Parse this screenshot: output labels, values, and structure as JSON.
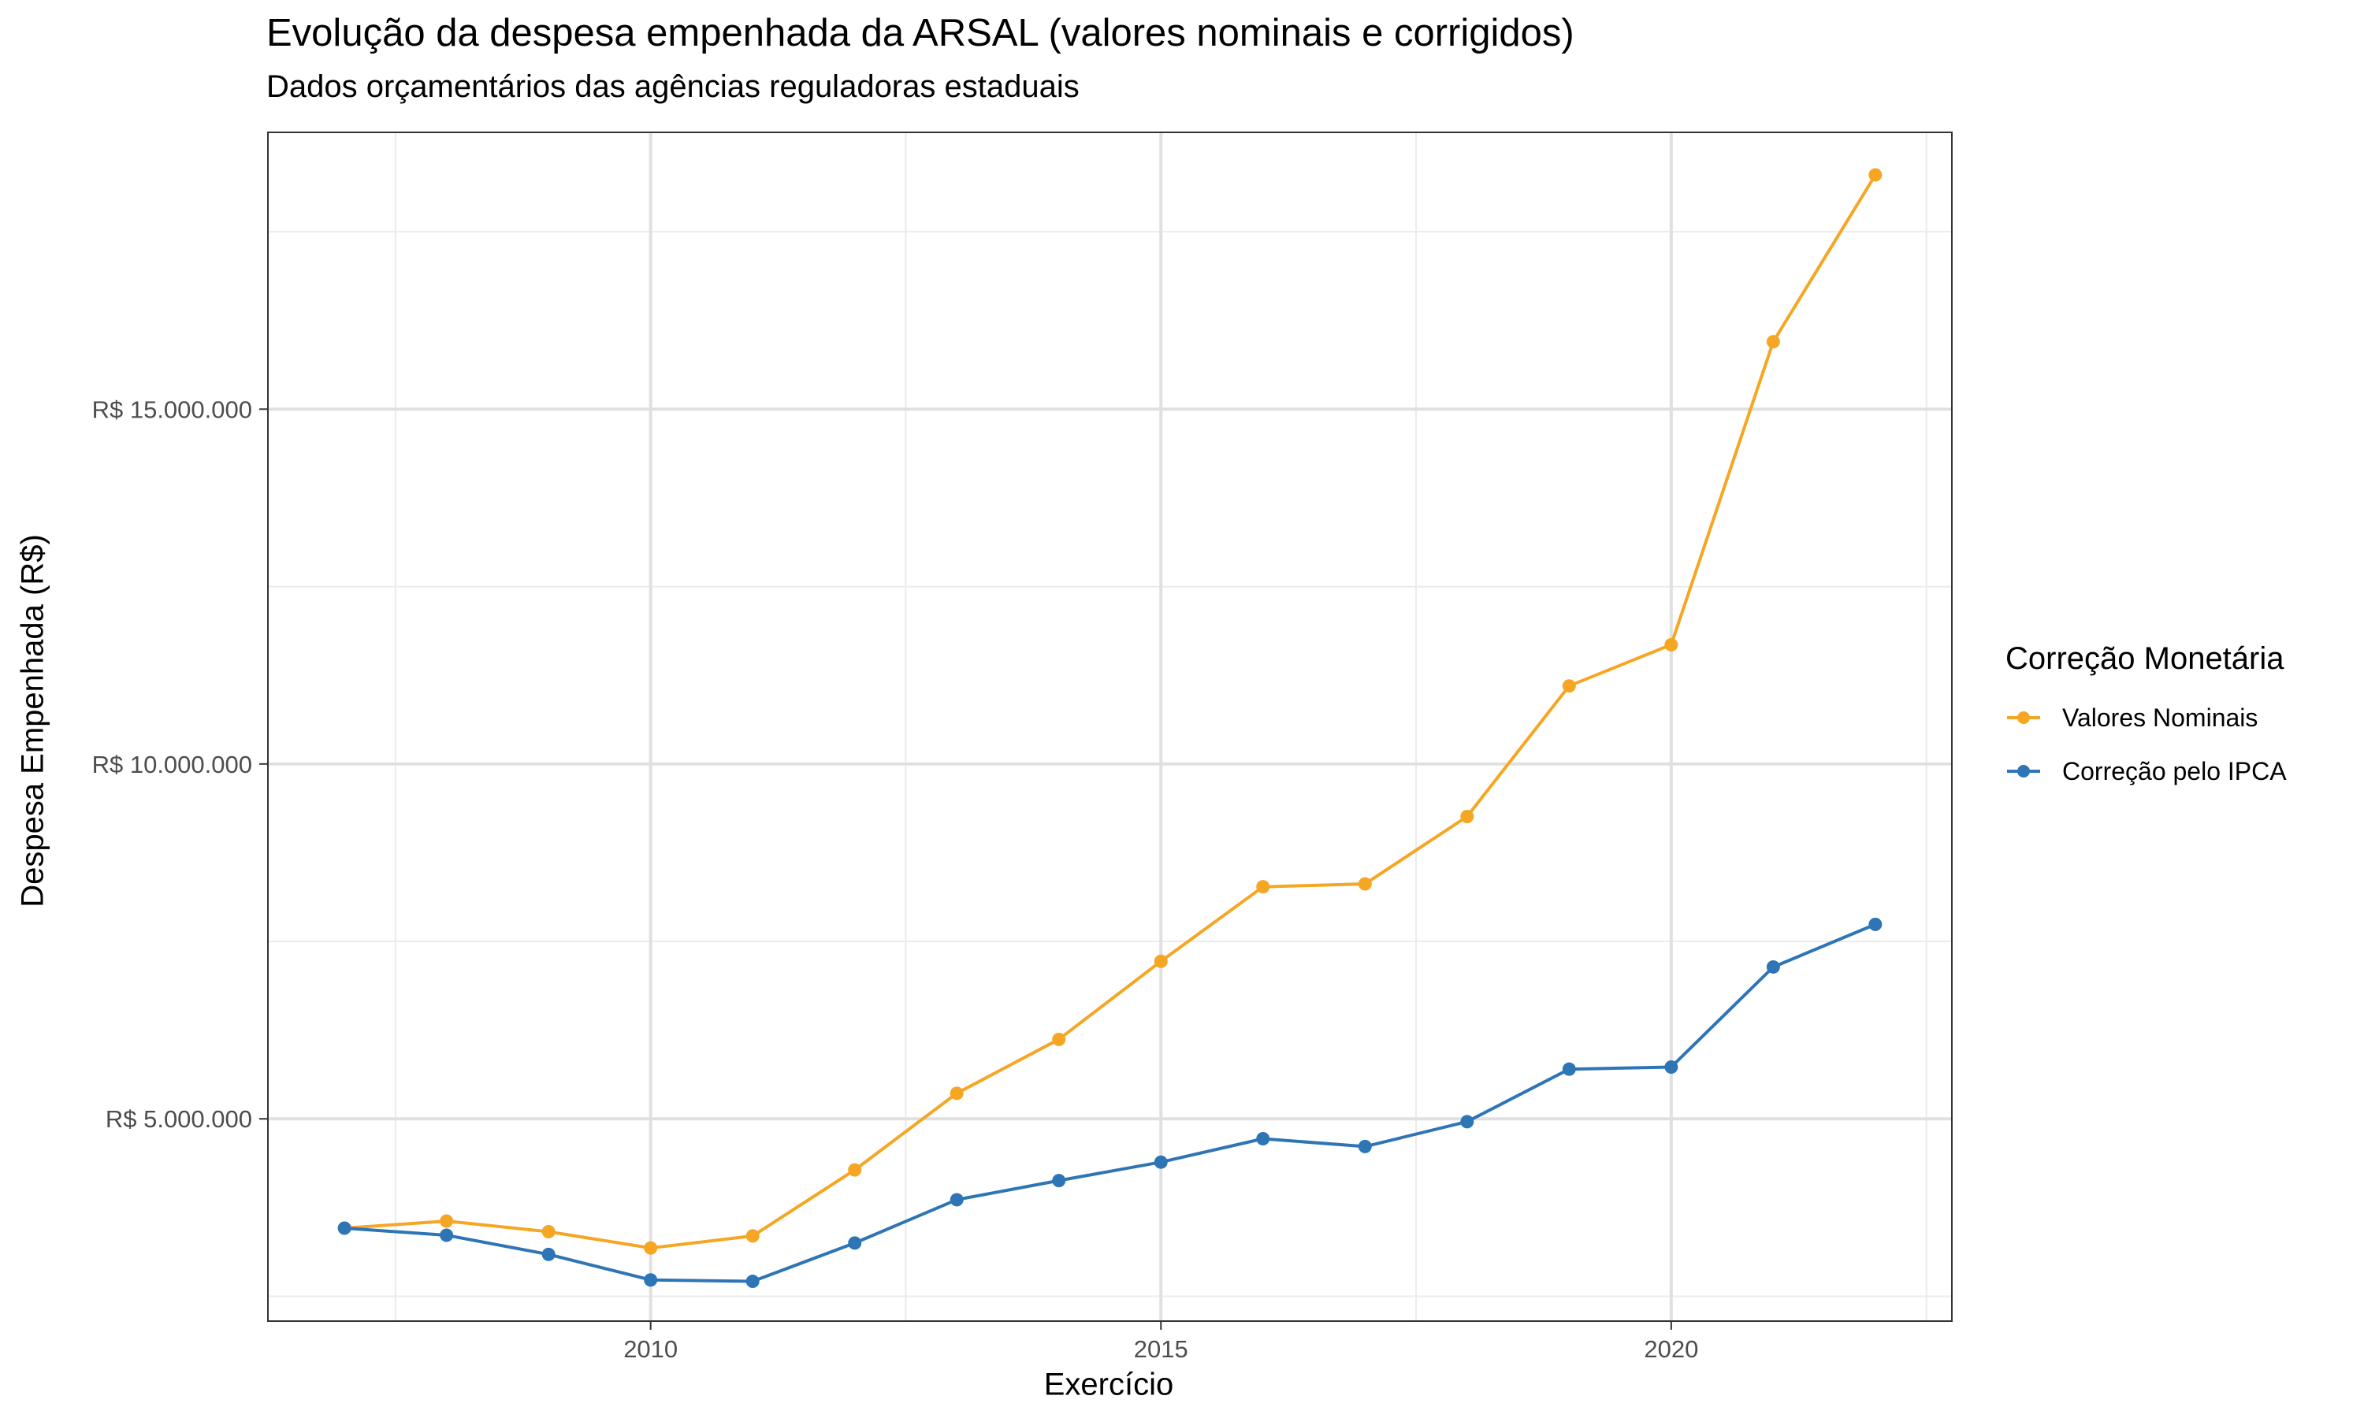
{
  "title": "Evolução da despesa empenhada da ARSAL (valores nominais e corrigidos)",
  "subtitle": "Dados orçamentários das agências reguladoras estaduais",
  "chart_data": {
    "type": "line",
    "xlabel": "Exercício",
    "ylabel": "Despesa Empenhada (R$)",
    "x": [
      2007,
      2008,
      2009,
      2010,
      2011,
      2012,
      2013,
      2014,
      2015,
      2016,
      2017,
      2018,
      2019,
      2020,
      2021,
      2022
    ],
    "xlim": [
      2006.25,
      2022.75
    ],
    "ylim": [
      2150000,
      18900000
    ],
    "x_ticks": [
      2010,
      2015,
      2020
    ],
    "x_tick_labels": [
      "2010",
      "2015",
      "2020"
    ],
    "y_ticks": [
      5000000,
      10000000,
      15000000
    ],
    "y_tick_labels": [
      "R$ 5.000.000",
      "R$ 10.000.000",
      "R$ 15.000.000"
    ],
    "grid": true,
    "legend_title": "Correção Monetária",
    "legend_position": "right",
    "series": [
      {
        "name": "Valores Nominais",
        "color": "#F5A623",
        "values": [
          3460000,
          3560000,
          3410000,
          3180000,
          3350000,
          4280000,
          5360000,
          6120000,
          7220000,
          8270000,
          8310000,
          9260000,
          11100000,
          11680000,
          15950000,
          18300000
        ]
      },
      {
        "name": "Correção pelo IPCA",
        "color": "#2E75B6",
        "values": [
          3460000,
          3360000,
          3090000,
          2730000,
          2710000,
          3250000,
          3860000,
          4130000,
          4390000,
          4720000,
          4610000,
          4960000,
          5700000,
          5730000,
          7140000,
          7740000
        ]
      }
    ]
  }
}
